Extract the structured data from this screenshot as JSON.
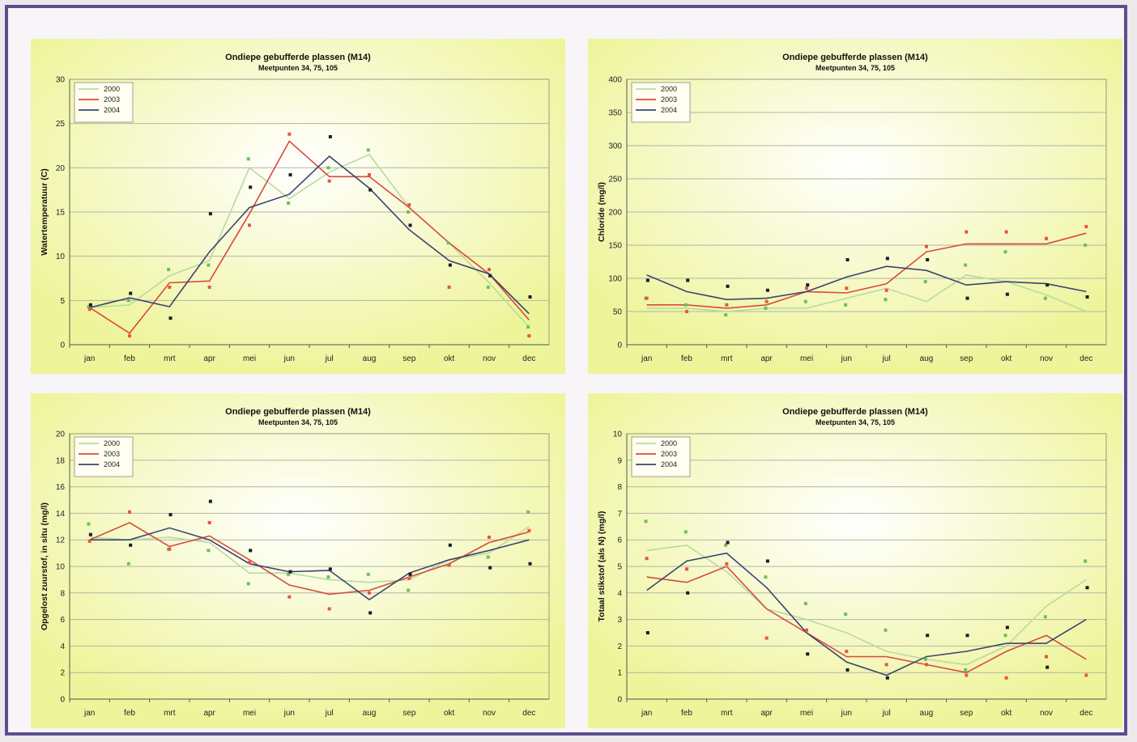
{
  "colors": {
    "page_border": "#5a4f8e",
    "chart_bg_edge": "#eef49a",
    "chart_bg_center": "#ffffff",
    "series_2000": "#b8dba0",
    "series_2003": "#d94a3c",
    "series_2004": "#3c4470",
    "points_green": "#6cbf5c",
    "points_red": "#e8553f",
    "points_black": "#1a1a2a"
  },
  "chart_data": [
    {
      "type": "line",
      "title": "Ondiepe gebufferde plassen (M14)",
      "subtitle": "Meetpunten 34, 75, 105",
      "xlabel": "",
      "ylabel": "Watertemperatuur (C)",
      "categories": [
        "jan",
        "feb",
        "mrt",
        "apr",
        "mei",
        "jun",
        "jul",
        "aug",
        "sep",
        "okt",
        "nov",
        "dec"
      ],
      "ylim": [
        0,
        30
      ],
      "yticks": [
        0,
        5,
        10,
        15,
        20,
        25,
        30
      ],
      "legend": "top-left",
      "grid": true,
      "series": [
        {
          "name": "2000",
          "color": "#b8dba0",
          "values": [
            4.2,
            4.5,
            7.8,
            9.5,
            20.0,
            16.5,
            19.5,
            21.5,
            15.5,
            11.5,
            7.0,
            2.0
          ]
        },
        {
          "name": "2003",
          "color": "#d94a3c",
          "values": [
            4.2,
            1.3,
            7.0,
            7.2,
            14.8,
            23.0,
            19.0,
            19.0,
            15.5,
            11.5,
            8.0,
            2.8
          ]
        },
        {
          "name": "2004",
          "color": "#3c4470",
          "values": [
            4.2,
            5.3,
            4.3,
            10.5,
            15.5,
            17.0,
            21.3,
            17.7,
            13.0,
            9.5,
            8.0,
            3.5
          ]
        }
      ],
      "points": [
        {
          "color": "#6cbf5c",
          "values": [
            4.3,
            5.0,
            8.5,
            9.0,
            21.0,
            16.0,
            20.0,
            22.0,
            15.0,
            11.5,
            6.5,
            2.0
          ]
        },
        {
          "color": "#e8553f",
          "values": [
            4.0,
            1.0,
            6.5,
            6.5,
            13.5,
            23.8,
            18.5,
            19.2,
            15.8,
            6.5,
            8.5,
            1.0
          ]
        },
        {
          "color": "#1a1a2a",
          "values": [
            4.5,
            5.8,
            3.0,
            14.8,
            17.8,
            19.2,
            23.5,
            17.5,
            13.5,
            9.0,
            7.8,
            5.4
          ]
        }
      ]
    },
    {
      "type": "line",
      "title": "Ondiepe gebufferde plassen (M14)",
      "subtitle": "Meetpunten 34, 75, 105",
      "xlabel": "",
      "ylabel": "Chloride (mg/l)",
      "categories": [
        "jan",
        "feb",
        "mrt",
        "apr",
        "mei",
        "jun",
        "jul",
        "aug",
        "sep",
        "okt",
        "nov",
        "dec"
      ],
      "ylim": [
        0,
        400
      ],
      "yticks": [
        0,
        50,
        100,
        150,
        200,
        250,
        300,
        350,
        400
      ],
      "legend": "top-left",
      "grid": true,
      "series": [
        {
          "name": "2000",
          "color": "#b8dba0",
          "values": [
            55,
            55,
            50,
            55,
            55,
            70,
            85,
            65,
            105,
            95,
            75,
            50
          ]
        },
        {
          "name": "2003",
          "color": "#d94a3c",
          "values": [
            60,
            60,
            55,
            60,
            80,
            78,
            92,
            140,
            152,
            152,
            152,
            168
          ]
        },
        {
          "name": "2004",
          "color": "#3c4470",
          "values": [
            105,
            80,
            68,
            70,
            80,
            102,
            118,
            112,
            90,
            95,
            92,
            80
          ]
        }
      ],
      "points": [
        {
          "color": "#6cbf5c",
          "values": [
            70,
            60,
            45,
            55,
            65,
            60,
            68,
            95,
            120,
            140,
            70,
            150
          ]
        },
        {
          "color": "#e8553f",
          "values": [
            70,
            50,
            60,
            65,
            85,
            85,
            82,
            148,
            170,
            170,
            160,
            178
          ]
        },
        {
          "color": "#1a1a2a",
          "values": [
            97,
            97,
            88,
            82,
            90,
            128,
            130,
            128,
            70,
            76,
            90,
            72
          ]
        }
      ]
    },
    {
      "type": "line",
      "title": "Ondiepe gebufferde plassen (M14)",
      "subtitle": "Meetpunten 34, 75, 105",
      "xlabel": "",
      "ylabel": "Opgelost zuurstof, in situ (mg/l)",
      "categories": [
        "jan",
        "feb",
        "mrt",
        "apr",
        "mei",
        "jun",
        "jul",
        "aug",
        "sep",
        "okt",
        "nov",
        "dec"
      ],
      "ylim": [
        0,
        20
      ],
      "yticks": [
        0,
        2,
        4,
        6,
        8,
        10,
        12,
        14,
        16,
        18,
        20
      ],
      "legend": "top-left",
      "grid": true,
      "series": [
        {
          "name": "2000",
          "color": "#b8dba0",
          "values": [
            12.2,
            12.0,
            12.2,
            11.8,
            9.5,
            9.5,
            9.0,
            8.8,
            9.0,
            10.5,
            11.0,
            13.0
          ]
        },
        {
          "name": "2003",
          "color": "#d94a3c",
          "values": [
            12.0,
            13.3,
            11.5,
            12.3,
            10.5,
            8.6,
            7.9,
            8.2,
            9.2,
            10.2,
            11.8,
            12.6
          ]
        },
        {
          "name": "2004",
          "color": "#3c4470",
          "values": [
            12.0,
            12.0,
            12.9,
            12.0,
            10.2,
            9.6,
            9.7,
            7.5,
            9.5,
            10.5,
            11.2,
            12.0
          ]
        }
      ],
      "points": [
        {
          "color": "#6cbf5c",
          "values": [
            13.2,
            10.2,
            11.3,
            11.2,
            8.7,
            9.4,
            9.2,
            9.4,
            8.2,
            10.1,
            10.7,
            14.1
          ]
        },
        {
          "color": "#e8553f",
          "values": [
            11.9,
            14.1,
            11.3,
            13.3,
            10.3,
            7.7,
            6.8,
            8.0,
            9.1,
            10.1,
            12.2,
            12.7
          ]
        },
        {
          "color": "#1a1a2a",
          "values": [
            12.4,
            11.6,
            13.9,
            14.9,
            11.2,
            9.6,
            9.8,
            6.5,
            9.4,
            11.6,
            9.9,
            10.2
          ]
        }
      ]
    },
    {
      "type": "line",
      "title": "Ondiepe gebufferde plassen (M14)",
      "subtitle": "Meetpunten 34, 75, 105",
      "xlabel": "",
      "ylabel": "Totaal stikstof (als N) (mg/l)",
      "categories": [
        "jan",
        "feb",
        "mrt",
        "apr",
        "mei",
        "jun",
        "jul",
        "aug",
        "sep",
        "okt",
        "nov",
        "dec"
      ],
      "ylim": [
        0,
        10
      ],
      "yticks": [
        0,
        1,
        2,
        3,
        4,
        5,
        6,
        7,
        8,
        9,
        10
      ],
      "legend": "top-left",
      "grid": true,
      "series": [
        {
          "name": "2000",
          "color": "#b8dba0",
          "values": [
            5.6,
            5.8,
            4.8,
            3.4,
            3.0,
            2.5,
            1.8,
            1.5,
            1.3,
            2.0,
            3.5,
            4.5
          ]
        },
        {
          "name": "2003",
          "color": "#d94a3c",
          "values": [
            4.6,
            4.4,
            5.0,
            3.4,
            2.5,
            1.6,
            1.6,
            1.3,
            1.0,
            1.8,
            2.4,
            1.5
          ]
        },
        {
          "name": "2004",
          "color": "#3c4470",
          "values": [
            4.1,
            5.2,
            5.5,
            4.2,
            2.5,
            1.4,
            0.9,
            1.6,
            1.8,
            2.1,
            2.1,
            3.0
          ]
        }
      ],
      "points": [
        {
          "color": "#6cbf5c",
          "values": [
            6.7,
            6.3,
            5.8,
            4.6,
            3.6,
            3.2,
            2.6,
            1.5,
            1.1,
            2.4,
            3.1,
            5.2
          ]
        },
        {
          "color": "#e8553f",
          "values": [
            5.3,
            4.9,
            5.1,
            2.3,
            2.6,
            1.8,
            1.3,
            1.3,
            0.9,
            0.8,
            1.6,
            0.9
          ]
        },
        {
          "color": "#1a1a2a",
          "values": [
            2.5,
            4.0,
            5.9,
            5.2,
            1.7,
            1.1,
            0.8,
            2.4,
            2.4,
            2.7,
            1.2,
            4.2
          ]
        }
      ]
    }
  ]
}
